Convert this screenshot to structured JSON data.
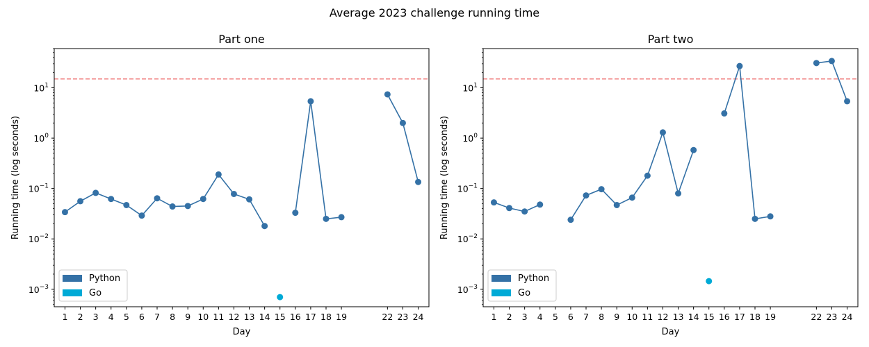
{
  "figure": {
    "title": "Average 2023 challenge running time"
  },
  "legend": {
    "items": [
      {
        "label": "Python",
        "color": "#3471a6"
      },
      {
        "label": "Go",
        "color": "#00aad6"
      }
    ]
  },
  "reference_line": {
    "value": 15,
    "color": "#f08080",
    "style": "dashed"
  },
  "chart_data": [
    {
      "type": "line",
      "title": "Part one",
      "xlabel": "Day",
      "ylabel": "Running time (log seconds)",
      "yscale": "log",
      "ylim": [
        0.00045,
        60
      ],
      "xlim": [
        0.3,
        24.7
      ],
      "yticks": [
        0.001,
        0.01,
        0.1,
        1,
        10
      ],
      "ytick_labels": [
        {
          "base": "10",
          "exp": "−3"
        },
        {
          "base": "10",
          "exp": "−2"
        },
        {
          "base": "10",
          "exp": "−1"
        },
        {
          "base": "10",
          "exp": "0"
        },
        {
          "base": "10",
          "exp": "1"
        }
      ],
      "xticks": [
        1,
        2,
        3,
        4,
        5,
        6,
        7,
        8,
        9,
        10,
        11,
        12,
        13,
        14,
        15,
        16,
        17,
        18,
        19,
        22,
        23,
        24
      ],
      "legend_position": "lower-left",
      "grid": false,
      "series": [
        {
          "name": "Python",
          "color": "#3471a6",
          "segments": [
            [
              [
                1,
                0.034
              ],
              [
                2,
                0.056
              ],
              [
                3,
                0.082
              ],
              [
                4,
                0.062
              ],
              [
                5,
                0.047
              ],
              [
                6,
                0.029
              ],
              [
                7,
                0.064
              ],
              [
                8,
                0.044
              ],
              [
                9,
                0.045
              ],
              [
                10,
                0.062
              ],
              [
                11,
                0.19
              ],
              [
                12,
                0.078
              ],
              [
                13,
                0.061
              ],
              [
                14,
                0.018
              ]
            ],
            [
              [
                16,
                0.033
              ],
              [
                17,
                5.4
              ],
              [
                18,
                0.025
              ],
              [
                19,
                0.027
              ]
            ],
            [
              [
                22,
                7.4
              ],
              [
                23,
                2.0
              ],
              [
                24,
                0.135
              ]
            ]
          ]
        },
        {
          "name": "Go",
          "color": "#00aad6",
          "segments": [
            [
              [
                15,
                0.0007
              ]
            ]
          ]
        }
      ]
    },
    {
      "type": "line",
      "title": "Part two",
      "xlabel": "Day",
      "ylabel": "Running time (log seconds)",
      "yscale": "log",
      "ylim": [
        0.00045,
        60
      ],
      "xlim": [
        0.3,
        24.7
      ],
      "yticks": [
        0.001,
        0.01,
        0.1,
        1,
        10
      ],
      "ytick_labels": [
        {
          "base": "10",
          "exp": "−3"
        },
        {
          "base": "10",
          "exp": "−2"
        },
        {
          "base": "10",
          "exp": "−1"
        },
        {
          "base": "10",
          "exp": "0"
        },
        {
          "base": "10",
          "exp": "1"
        }
      ],
      "xticks": [
        1,
        2,
        3,
        4,
        5,
        6,
        7,
        8,
        9,
        10,
        11,
        12,
        13,
        14,
        15,
        16,
        17,
        18,
        19,
        22,
        23,
        24
      ],
      "legend_position": "lower-left",
      "grid": false,
      "series": [
        {
          "name": "Python",
          "color": "#3471a6",
          "segments": [
            [
              [
                1,
                0.053
              ],
              [
                2,
                0.041
              ],
              [
                3,
                0.035
              ],
              [
                4,
                0.048
              ]
            ],
            [
              [
                6,
                0.024
              ],
              [
                7,
                0.073
              ],
              [
                8,
                0.097
              ],
              [
                9,
                0.047
              ],
              [
                10,
                0.066
              ],
              [
                11,
                0.18
              ],
              [
                12,
                1.3
              ],
              [
                13,
                0.08
              ],
              [
                14,
                0.58
              ]
            ],
            [
              [
                16,
                3.1
              ],
              [
                17,
                27
              ],
              [
                18,
                0.025
              ],
              [
                19,
                0.028
              ]
            ],
            [
              [
                22,
                31
              ],
              [
                23,
                34
              ],
              [
                24,
                5.4
              ]
            ]
          ]
        },
        {
          "name": "Go",
          "color": "#00aad6",
          "segments": [
            [
              [
                15,
                0.00145
              ]
            ]
          ]
        }
      ]
    }
  ]
}
